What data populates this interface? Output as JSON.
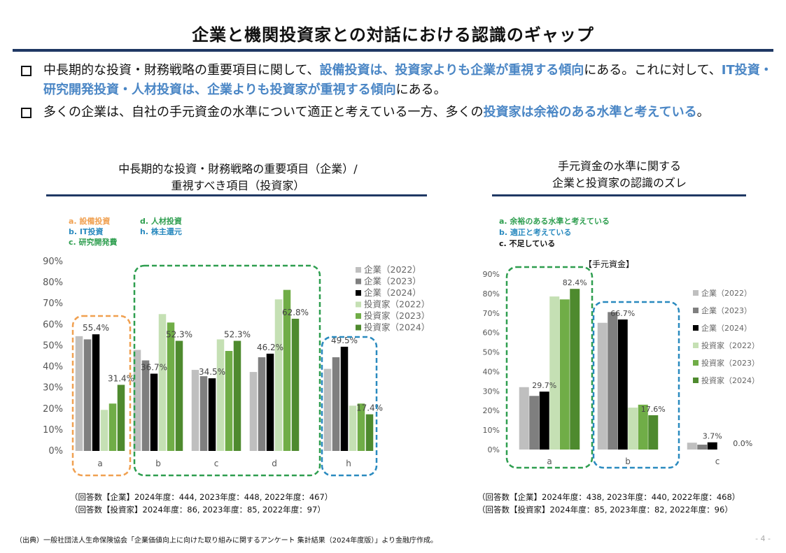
{
  "page": {
    "title": "企業と機関投資家との対話における認識のギャップ",
    "source": "（出典）一般社団法人生命保険協会「企業価値向上に向けた取り組みに関するアンケート 集計結果（2024年度版）」より金融庁作成。",
    "page_number": "- 4 -"
  },
  "bullets": [
    [
      {
        "t": "中長期的な投資・財務戦略の重要項目に関して、",
        "hl": false
      },
      {
        "t": "設備投資は、投資家よりも企業が重視する傾向",
        "hl": true
      },
      {
        "t": "にある。これに対して、",
        "hl": false
      },
      {
        "t": "IT投資・研究開発投資・人材投資は、企業よりも投資家が重視する傾向",
        "hl": true
      },
      {
        "t": "にある。",
        "hl": false
      }
    ],
    [
      {
        "t": "多くの企業は、自社の手元資金の水準について適正と考えている一方、多くの",
        "hl": false
      },
      {
        "t": "投資家は余裕のある水準と考えている",
        "hl": true
      },
      {
        "t": "。",
        "hl": false
      }
    ]
  ],
  "left_section": {
    "title_line1": "中長期的な投資・財務戦略の重要項目（企業）/",
    "title_line2": "重視すべき項目（投資家）",
    "footnote1": "（回答数【企業】2024年度：444, 2023年度：448, 2022年度：467）",
    "footnote2": "（回答数【投資家】2024年度：86, 2023年度：85, 2022年度：97）"
  },
  "right_section": {
    "title_line1": "手元資金の水準に関する",
    "title_line2": "企業と投資家の認識のズレ",
    "footnote1": "（回答数【企業】2024年度：438, 2023年度：440, 2022年度：468）",
    "footnote2": "（回答数【投資家】2024年度：85, 2023年度：82, 2022年度：96）"
  },
  "colors": {
    "accent_blue": "#4a86c5",
    "navy_rule": "#1f3864",
    "orange": "#f0a050",
    "green": "#2e9e4f",
    "teal": "#2a8abf",
    "series": [
      "#bfbfbf",
      "#7f7f7f",
      "#000000",
      "#c5e0b4",
      "#70ad47",
      "#4e8a2e"
    ]
  },
  "chart_data": [
    {
      "type": "bar",
      "categories": [
        "a",
        "b",
        "c",
        "d",
        "h"
      ],
      "ylim": [
        0,
        90
      ],
      "yticks": [
        "0%",
        "10%",
        "20%",
        "30%",
        "40%",
        "50%",
        "60%",
        "70%",
        "80%",
        "90%"
      ],
      "grid": false,
      "legend_position": "right",
      "category_legend": [
        {
          "text": "a. 設備投資",
          "color": "#f0a050"
        },
        {
          "text": "b. IT投資",
          "color": "#2a8abf"
        },
        {
          "text": "c. 研究開発費",
          "color": "#2e9e4f"
        },
        {
          "text": "d. 人材投資",
          "color": "#2e9e4f"
        },
        {
          "text": "h. 株主還元",
          "color": "#2a8abf"
        }
      ],
      "series": [
        {
          "name": "企業（2022）",
          "values": [
            54.5,
            48.0,
            38.5,
            37.5,
            39.0
          ]
        },
        {
          "name": "企業（2023）",
          "values": [
            53.0,
            43.0,
            35.5,
            44.5,
            44.5
          ]
        },
        {
          "name": "企業（2024）",
          "values": [
            55.4,
            36.7,
            34.5,
            46.2,
            49.5
          ]
        },
        {
          "name": "投資家（2022）",
          "values": [
            19.5,
            65.0,
            53.0,
            72.0,
            21.5
          ]
        },
        {
          "name": "投資家（2023）",
          "values": [
            22.5,
            61.0,
            47.5,
            76.5,
            22.5
          ]
        },
        {
          "name": "投資家（2024）",
          "values": [
            31.4,
            52.3,
            52.3,
            62.8,
            17.4
          ]
        }
      ],
      "data_labels": [
        {
          "category": "a",
          "series": 2,
          "text": "55.4%"
        },
        {
          "category": "a",
          "series": 5,
          "text": "31.4%"
        },
        {
          "category": "b",
          "series": 2,
          "text": "36.7%"
        },
        {
          "category": "b",
          "series": 5,
          "text": "52.3%"
        },
        {
          "category": "c",
          "series": 2,
          "text": "34.5%"
        },
        {
          "category": "c",
          "series": 5,
          "text": "52.3%"
        },
        {
          "category": "d",
          "series": 2,
          "text": "46.2%"
        },
        {
          "category": "d",
          "series": 5,
          "text": "62.8%"
        },
        {
          "category": "h",
          "series": 2,
          "text": "49.5%"
        },
        {
          "category": "h",
          "series": 5,
          "text": "17.4%"
        }
      ]
    },
    {
      "type": "bar",
      "chart_title": "【手元資金】",
      "categories": [
        "a",
        "b",
        "c"
      ],
      "ylim": [
        0,
        90
      ],
      "yticks": [
        "0%",
        "10%",
        "20%",
        "30%",
        "40%",
        "50%",
        "60%",
        "70%",
        "80%",
        "90%"
      ],
      "grid": false,
      "legend_position": "right",
      "category_legend": [
        {
          "text": "a. 余裕のある水準と考えている",
          "color": "#2e9e4f"
        },
        {
          "text": "b. 適正と考えている",
          "color": "#2a8abf"
        },
        {
          "text": "c. 不足している",
          "color": "#111111"
        }
      ],
      "series": [
        {
          "name": "企業（2022）",
          "values": [
            32.0,
            65.0,
            3.5
          ]
        },
        {
          "name": "企業（2023）",
          "values": [
            27.5,
            70.5,
            2.5
          ]
        },
        {
          "name": "企業（2024）",
          "values": [
            29.7,
            66.7,
            3.7
          ]
        },
        {
          "name": "投資家（2022）",
          "values": [
            78.5,
            21.5,
            0.0
          ]
        },
        {
          "name": "投資家（2023）",
          "values": [
            77.0,
            23.0,
            0.0
          ]
        },
        {
          "name": "投資家（2024）",
          "values": [
            82.4,
            17.6,
            0.0
          ]
        }
      ],
      "data_labels": [
        {
          "category": "a",
          "series": 2,
          "text": "29.7%"
        },
        {
          "category": "a",
          "series": 5,
          "text": "82.4%"
        },
        {
          "category": "b",
          "series": 2,
          "text": "66.7%"
        },
        {
          "category": "b",
          "series": 5,
          "text": "17.6%"
        },
        {
          "category": "c",
          "series": 2,
          "text": "3.7%"
        },
        {
          "category": "c",
          "series": 5,
          "text": "0.0%"
        }
      ]
    }
  ]
}
